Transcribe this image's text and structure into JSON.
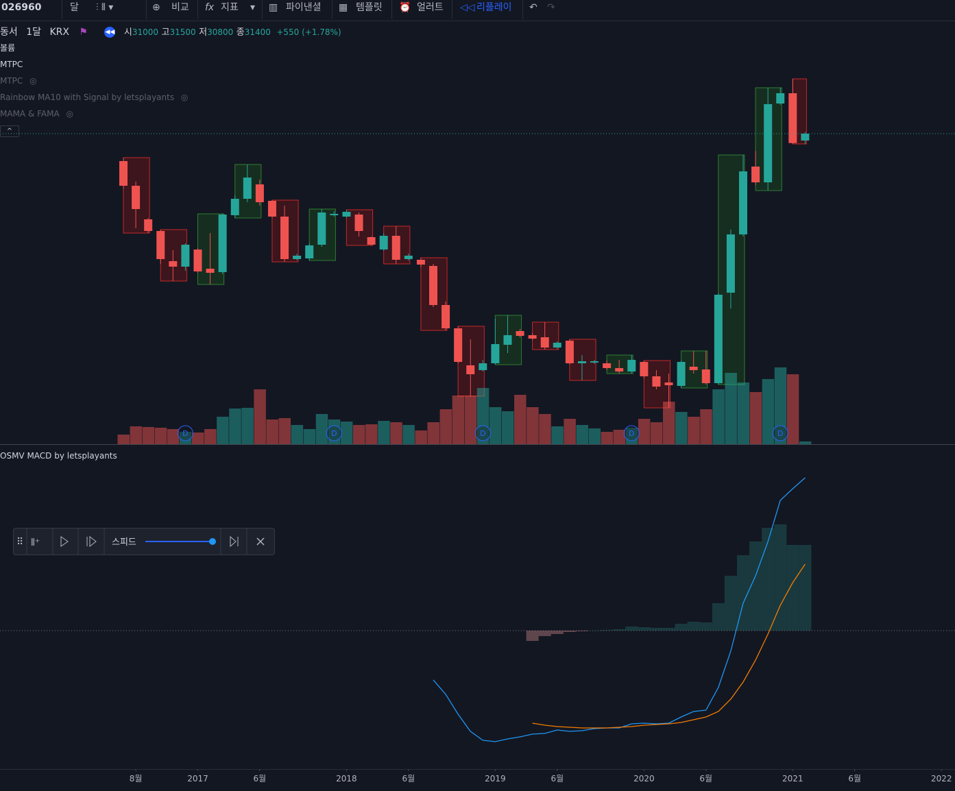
{
  "toolbar": {
    "symbol": "026960",
    "items": [
      "달",
      "비교",
      "지표",
      "파이낸셜",
      "템플릿",
      "얼러트",
      "리플레이"
    ]
  },
  "legend": {
    "name": "동서",
    "interval": "1달",
    "exchange": "KRX",
    "open_label": "시",
    "high_label": "고",
    "low_label": "저",
    "close_label": "종",
    "change": "+550 (+1.78%)",
    "indicators": [
      "볼륨",
      "MTPC"
    ],
    "hidden_indicators": [
      "MTPC",
      "Rainbow MA10 with Signal by letsplayants",
      "MAMA & FAMA"
    ]
  },
  "replay": {
    "speed_label": "스피드"
  },
  "chart_data": {
    "type": "candlestick",
    "open": [
      29800,
      28360,
      26400,
      25720,
      23960,
      23640,
      24640,
      23520,
      23320,
      26640,
      27600,
      28440,
      27480,
      26560,
      24080,
      24120,
      24920,
      26640,
      26560,
      26680,
      25360,
      24640,
      25440,
      24080,
      24040,
      23680,
      21400,
      20040,
      17880,
      17600,
      18000,
      19080,
      19880,
      19640,
      19520,
      18920,
      19320,
      18000,
      18040,
      18000,
      17720,
      17520,
      18080,
      17240,
      16880,
      16680,
      17800,
      17640,
      16840,
      22120,
      25520,
      29480,
      28560,
      33160,
      33760,
      31000
    ],
    "high": [
      30000,
      28600,
      26480,
      25800,
      24600,
      25000,
      24720,
      25600,
      26720,
      27800,
      29600,
      28720,
      27520,
      27200,
      24400,
      25000,
      27000,
      26880,
      26960,
      26800,
      25400,
      25600,
      26000,
      24400,
      24160,
      23800,
      21600,
      20160,
      19400,
      18200,
      20600,
      20800,
      20000,
      19760,
      20400,
      19280,
      19400,
      18480,
      18200,
      18160,
      18200,
      18480,
      18160,
      17600,
      17400,
      18160,
      18720,
      18720,
      22080,
      25800,
      30160,
      30400,
      34080,
      34080,
      34600,
      31500
    ],
    "low": [
      28200,
      25880,
      25600,
      23800,
      22800,
      23400,
      23280,
      22600,
      23200,
      26480,
      27400,
      27200,
      26480,
      23920,
      24000,
      24000,
      24800,
      26560,
      26480,
      25400,
      24880,
      24560,
      23800,
      24000,
      23600,
      21280,
      19920,
      18000,
      16080,
      17520,
      17920,
      18600,
      19520,
      19360,
      18800,
      18840,
      17920,
      17000,
      17960,
      17600,
      17400,
      17400,
      17120,
      16480,
      15400,
      16560,
      17400,
      16760,
      16760,
      21200,
      25400,
      28400,
      28080,
      33080,
      30800,
      30800
    ],
    "close": [
      28360,
      27000,
      25720,
      24080,
      23640,
      24920,
      23360,
      23280,
      26680,
      27600,
      28840,
      27400,
      26560,
      24080,
      24280,
      24880,
      26800,
      26720,
      26840,
      25720,
      24920,
      25440,
      24040,
      24280,
      23760,
      21400,
      20040,
      18080,
      17360,
      18000,
      19120,
      19640,
      19600,
      19440,
      18920,
      19200,
      18000,
      18120,
      18120,
      17720,
      17520,
      18200,
      17240,
      16640,
      16720,
      18080,
      17600,
      16840,
      22000,
      25520,
      29200,
      28560,
      33120,
      33760,
      30850,
      31400
    ],
    "up_color": "#26a69a",
    "down_color": "#ef5350",
    "ylim": [
      13280,
      38000
    ],
    "volume": [
      14,
      26,
      25,
      24,
      22,
      18,
      17,
      22,
      40,
      52,
      53,
      80,
      36,
      38,
      28,
      22,
      44,
      36,
      33,
      28,
      29,
      34,
      32,
      28,
      20,
      32,
      51,
      71,
      71,
      82,
      54,
      48,
      72,
      54,
      44,
      26,
      37,
      28,
      23,
      18,
      21,
      24,
      37,
      32,
      62,
      47,
      40,
      51,
      80,
      104,
      90,
      76,
      95,
      112,
      102,
      4
    ],
    "volume_ylim": [
      0,
      618
    ],
    "events": [
      {
        "index": 5,
        "label": "D"
      },
      {
        "index": 17,
        "label": "D"
      },
      {
        "index": 29,
        "label": "D"
      },
      {
        "index": 41,
        "label": "D"
      },
      {
        "index": 53,
        "label": "D"
      }
    ],
    "xticks": [
      {
        "value": 1,
        "label": "8월"
      },
      {
        "value": 6,
        "label": "2017"
      },
      {
        "value": 11,
        "label": "6월"
      },
      {
        "value": 18,
        "label": "2018"
      },
      {
        "value": 23,
        "label": "6월"
      },
      {
        "value": 30,
        "label": "2019"
      },
      {
        "value": 35,
        "label": "6월"
      },
      {
        "value": 42,
        "label": "2020"
      },
      {
        "value": 47,
        "label": "6월"
      },
      {
        "value": 54,
        "label": "2021"
      },
      {
        "value": 59,
        "label": "6월"
      },
      {
        "value": 66,
        "label": "2022"
      }
    ],
    "macd_pane": {
      "type": "line",
      "title": "OSMV MACD by letsplayants",
      "ylim": [
        -2000,
        2300
      ],
      "series": [
        {
          "color": "#2196f3",
          "values": [
            null,
            null,
            null,
            null,
            null,
            null,
            null,
            null,
            null,
            null,
            null,
            null,
            null,
            null,
            null,
            null,
            null,
            null,
            null,
            null,
            null,
            null,
            null,
            null,
            null,
            -720,
            -930,
            -1220,
            -1470,
            -1600,
            -1620,
            -1580,
            -1550,
            -1510,
            -1500,
            -1450,
            -1470,
            -1460,
            -1430,
            -1420,
            -1420,
            -1360,
            -1350,
            -1360,
            -1350,
            -1260,
            -1180,
            -1160,
            -830,
            -300,
            400,
            800,
            1300,
            1900,
            2070,
            2230
          ]
        },
        {
          "color": "#f57c00",
          "values": [
            null,
            null,
            null,
            null,
            null,
            null,
            null,
            null,
            null,
            null,
            null,
            null,
            null,
            null,
            null,
            null,
            null,
            null,
            null,
            null,
            null,
            null,
            null,
            null,
            null,
            null,
            null,
            null,
            null,
            null,
            null,
            null,
            null,
            -1350,
            -1380,
            -1400,
            -1410,
            -1420,
            -1420,
            -1420,
            -1410,
            -1400,
            -1380,
            -1370,
            -1360,
            -1340,
            -1300,
            -1260,
            -1180,
            -1000,
            -750,
            -430,
            -50,
            370,
            700,
            970
          ]
        }
      ],
      "histogram": [
        null,
        null,
        null,
        null,
        null,
        null,
        null,
        null,
        null,
        null,
        null,
        null,
        null,
        null,
        null,
        null,
        null,
        null,
        null,
        null,
        null,
        null,
        null,
        null,
        null,
        null,
        null,
        null,
        null,
        null,
        null,
        null,
        null,
        -150,
        -80,
        -50,
        -20,
        -10,
        0,
        10,
        20,
        60,
        50,
        40,
        40,
        100,
        130,
        120,
        400,
        800,
        1100,
        1300,
        1500,
        1550,
        1250,
        1250
      ]
    }
  }
}
